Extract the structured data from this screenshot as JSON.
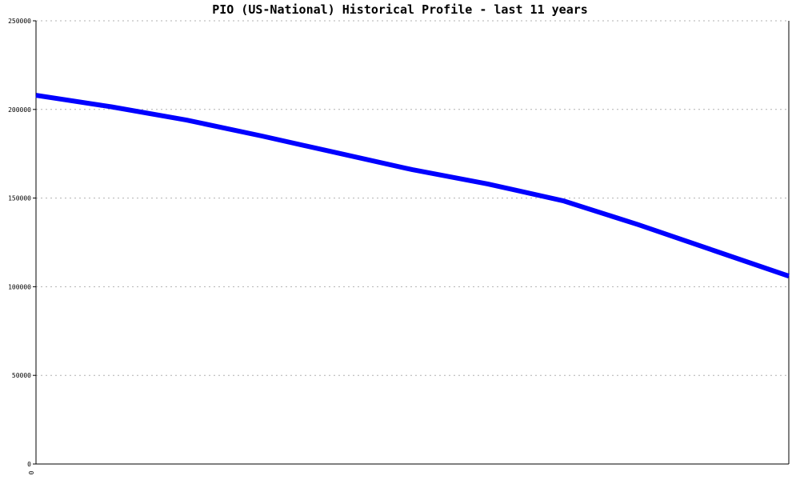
{
  "chart_data": {
    "type": "line",
    "title": "PIO (US-National) Historical Profile - last 11 years",
    "xlabel": "",
    "ylabel": "",
    "ylim": [
      0,
      250000
    ],
    "y_ticks": [
      0,
      50000,
      100000,
      150000,
      200000,
      250000
    ],
    "y_tick_labels": [
      "0",
      "50000",
      "100000",
      "150000",
      "200000",
      "250000"
    ],
    "x_tick_labels": [
      "0"
    ],
    "grid": true,
    "line_color": "#0000ff",
    "series": [
      {
        "values": [
          208000,
          201500,
          194000,
          185000,
          175500,
          166000,
          158000,
          148500,
          135000,
          120500,
          106000
        ]
      }
    ]
  }
}
